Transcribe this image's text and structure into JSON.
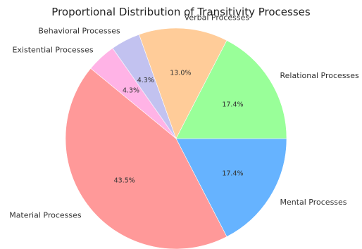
{
  "chart_data": {
    "type": "pie",
    "title": "Proportional Distribution of Transitivity Processes",
    "start_angle_deg": 0,
    "direction": "clockwise",
    "slices": [
      {
        "label": "Mental Processes",
        "value": 17.4,
        "pct_label": "17.4%",
        "color": "#66b3ff"
      },
      {
        "label": "Material Processes",
        "value": 43.5,
        "pct_label": "43.5%",
        "color": "#ff9999"
      },
      {
        "label": "Existential Processes",
        "value": 4.3,
        "pct_label": "4.3%",
        "color": "#ffb3e6"
      },
      {
        "label": "Behavioral Processes",
        "value": 4.3,
        "pct_label": "4.3%",
        "color": "#c2c2f0"
      },
      {
        "label": "Verbal Processes",
        "value": 13.0,
        "pct_label": "13.0%",
        "color": "#ffcc99"
      },
      {
        "label": "Relational Processes",
        "value": 17.4,
        "pct_label": "17.4%",
        "color": "#99ff99"
      }
    ]
  }
}
